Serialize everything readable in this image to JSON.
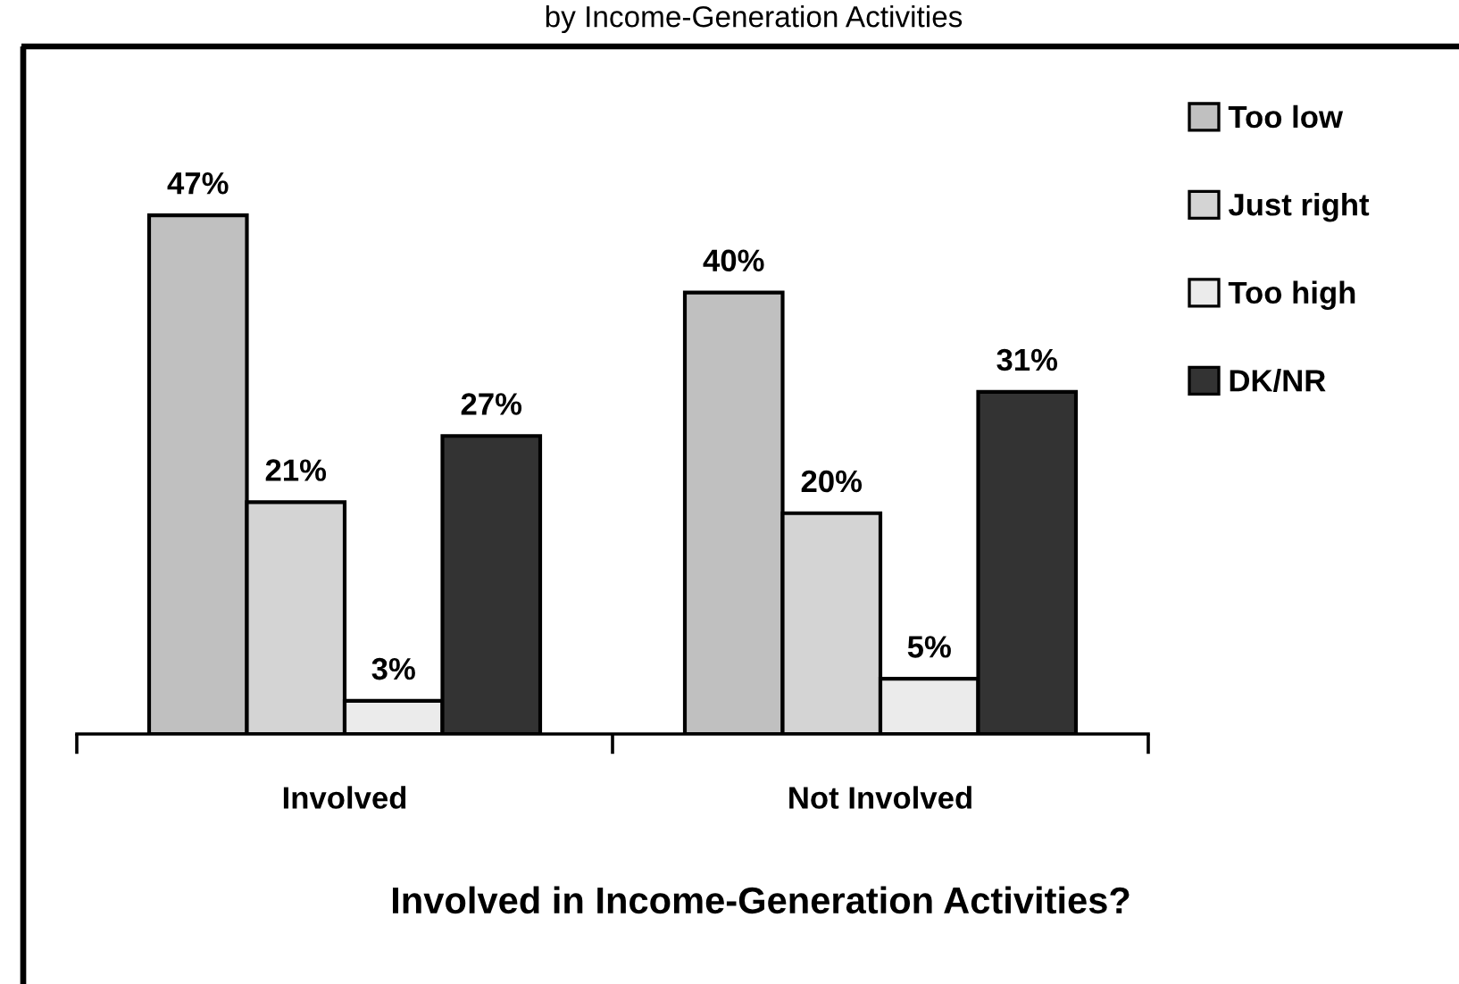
{
  "chart_data": {
    "type": "bar",
    "title": "by Income-Generation Activities",
    "xlabel": "Involved in Income-Generation Activities?",
    "categories": [
      "Involved",
      "Not Involved"
    ],
    "series": [
      {
        "name": "Too low",
        "color": "#c0c0c0",
        "values": [
          47,
          40
        ],
        "value_labels": [
          "47%",
          "40%"
        ]
      },
      {
        "name": "Just right",
        "color": "#d4d4d4",
        "values": [
          21,
          20
        ],
        "value_labels": [
          "21%",
          "20%"
        ]
      },
      {
        "name": "Too high",
        "color": "#ebebeb",
        "values": [
          3,
          5
        ],
        "value_labels": [
          "3%",
          "5%"
        ]
      },
      {
        "name": "DK/NR",
        "color": "#333333",
        "values": [
          27,
          31
        ],
        "value_labels": [
          "27%",
          "31%"
        ]
      }
    ],
    "legend": "top right"
  }
}
